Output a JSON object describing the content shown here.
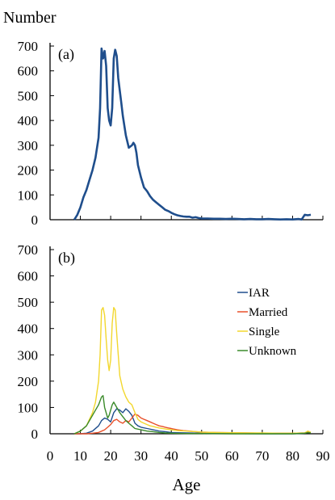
{
  "figure": {
    "ylabel": "Number",
    "xlabel": "Age"
  },
  "chart_data": [
    {
      "type": "line",
      "panel_label": "(a)",
      "ylabel": "Number",
      "xlim": [
        8,
        86
      ],
      "ylim": [
        0,
        700
      ],
      "yticks": [
        0,
        100,
        200,
        300,
        400,
        500,
        600,
        700
      ],
      "grid": false,
      "series": [
        {
          "color": "#1f4e8c",
          "points": [
            [
              8,
              0
            ],
            [
              9,
              20
            ],
            [
              10,
              50
            ],
            [
              11,
              90
            ],
            [
              12,
              120
            ],
            [
              13,
              160
            ],
            [
              14,
              200
            ],
            [
              15,
              250
            ],
            [
              16,
              330
            ],
            [
              16.5,
              450
            ],
            [
              17,
              690
            ],
            [
              17.5,
              650
            ],
            [
              18,
              680
            ],
            [
              18.5,
              620
            ],
            [
              19,
              450
            ],
            [
              19.5,
              400
            ],
            [
              20,
              380
            ],
            [
              20.5,
              450
            ],
            [
              21,
              650
            ],
            [
              21.5,
              685
            ],
            [
              22,
              660
            ],
            [
              22.5,
              570
            ],
            [
              23,
              520
            ],
            [
              23.5,
              470
            ],
            [
              24,
              420
            ],
            [
              24.5,
              380
            ],
            [
              25,
              340
            ],
            [
              26,
              290
            ],
            [
              27,
              300
            ],
            [
              27.5,
              310
            ],
            [
              28,
              300
            ],
            [
              28.5,
              270
            ],
            [
              29,
              220
            ],
            [
              30,
              170
            ],
            [
              31,
              130
            ],
            [
              32,
              115
            ],
            [
              33,
              95
            ],
            [
              34,
              80
            ],
            [
              35,
              70
            ],
            [
              36,
              60
            ],
            [
              37,
              50
            ],
            [
              38,
              40
            ],
            [
              39,
              35
            ],
            [
              40,
              28
            ],
            [
              41,
              22
            ],
            [
              42,
              18
            ],
            [
              43,
              15
            ],
            [
              44,
              13
            ],
            [
              45,
              12
            ],
            [
              46,
              12
            ],
            [
              47,
              8
            ],
            [
              48,
              10
            ],
            [
              49,
              7
            ],
            [
              50,
              5
            ],
            [
              52,
              5
            ],
            [
              54,
              4
            ],
            [
              56,
              4
            ],
            [
              58,
              3
            ],
            [
              60,
              4
            ],
            [
              62,
              3
            ],
            [
              64,
              2
            ],
            [
              66,
              3
            ],
            [
              68,
              2
            ],
            [
              70,
              2
            ],
            [
              72,
              3
            ],
            [
              74,
              2
            ],
            [
              76,
              1
            ],
            [
              78,
              2
            ],
            [
              80,
              1
            ],
            [
              82,
              3
            ],
            [
              83,
              1
            ],
            [
              84,
              20
            ],
            [
              85,
              18
            ],
            [
              86,
              20
            ]
          ]
        }
      ]
    },
    {
      "type": "line",
      "panel_label": "(b)",
      "xlabel": "Age",
      "xlim": [
        0,
        90
      ],
      "ylim": [
        0,
        700
      ],
      "xticks": [
        0,
        10,
        20,
        30,
        40,
        50,
        60,
        70,
        80,
        90
      ],
      "yticks": [
        0,
        100,
        200,
        300,
        400,
        500,
        600,
        700
      ],
      "legend_position": "right",
      "grid": false,
      "series": [
        {
          "name": "IAR",
          "color": "#1f4e8c",
          "points": [
            [
              8,
              0
            ],
            [
              10,
              0
            ],
            [
              12,
              2
            ],
            [
              14,
              10
            ],
            [
              16,
              30
            ],
            [
              17,
              50
            ],
            [
              18,
              60
            ],
            [
              19,
              55
            ],
            [
              20,
              45
            ],
            [
              21,
              80
            ],
            [
              22,
              95
            ],
            [
              23,
              90
            ],
            [
              24,
              80
            ],
            [
              25,
              95
            ],
            [
              26,
              85
            ],
            [
              27,
              70
            ],
            [
              28,
              40
            ],
            [
              29,
              30
            ],
            [
              30,
              25
            ],
            [
              32,
              20
            ],
            [
              34,
              15
            ],
            [
              36,
              10
            ],
            [
              38,
              8
            ],
            [
              40,
              5
            ],
            [
              42,
              4
            ],
            [
              45,
              3
            ],
            [
              50,
              2
            ],
            [
              55,
              1
            ],
            [
              60,
              1
            ],
            [
              70,
              0
            ],
            [
              80,
              0
            ],
            [
              84,
              2
            ],
            [
              85,
              6
            ],
            [
              86,
              5
            ]
          ]
        },
        {
          "name": "Married",
          "color": "#e8502a",
          "points": [
            [
              8,
              0
            ],
            [
              12,
              0
            ],
            [
              14,
              2
            ],
            [
              16,
              5
            ],
            [
              18,
              15
            ],
            [
              19,
              25
            ],
            [
              20,
              35
            ],
            [
              21,
              50
            ],
            [
              22,
              55
            ],
            [
              23,
              45
            ],
            [
              24,
              40
            ],
            [
              25,
              50
            ],
            [
              26,
              45
            ],
            [
              27,
              60
            ],
            [
              28,
              75
            ],
            [
              29,
              70
            ],
            [
              30,
              60
            ],
            [
              31,
              55
            ],
            [
              32,
              50
            ],
            [
              33,
              45
            ],
            [
              34,
              40
            ],
            [
              35,
              35
            ],
            [
              36,
              30
            ],
            [
              37,
              28
            ],
            [
              38,
              25
            ],
            [
              39,
              22
            ],
            [
              40,
              20
            ],
            [
              42,
              15
            ],
            [
              44,
              12
            ],
            [
              46,
              10
            ],
            [
              48,
              8
            ],
            [
              50,
              6
            ],
            [
              55,
              5
            ],
            [
              60,
              4
            ],
            [
              65,
              3
            ],
            [
              70,
              2
            ],
            [
              75,
              2
            ],
            [
              80,
              2
            ],
            [
              84,
              3
            ],
            [
              85,
              5
            ],
            [
              86,
              4
            ]
          ]
        },
        {
          "name": "Single",
          "color": "#f2d72e",
          "points": [
            [
              8,
              0
            ],
            [
              10,
              10
            ],
            [
              12,
              30
            ],
            [
              14,
              80
            ],
            [
              15,
              120
            ],
            [
              16,
              200
            ],
            [
              16.5,
              300
            ],
            [
              17,
              470
            ],
            [
              17.5,
              480
            ],
            [
              18,
              450
            ],
            [
              18.5,
              360
            ],
            [
              19,
              280
            ],
            [
              19.5,
              240
            ],
            [
              20,
              280
            ],
            [
              20.5,
              420
            ],
            [
              21,
              480
            ],
            [
              21.5,
              470
            ],
            [
              22,
              380
            ],
            [
              22.5,
              300
            ],
            [
              23,
              220
            ],
            [
              24,
              170
            ],
            [
              25,
              140
            ],
            [
              26,
              120
            ],
            [
              27,
              110
            ],
            [
              28,
              80
            ],
            [
              29,
              55
            ],
            [
              30,
              45
            ],
            [
              31,
              40
            ],
            [
              32,
              35
            ],
            [
              33,
              30
            ],
            [
              34,
              28
            ],
            [
              35,
              25
            ],
            [
              36,
              22
            ],
            [
              38,
              18
            ],
            [
              40,
              15
            ],
            [
              42,
              12
            ],
            [
              45,
              10
            ],
            [
              48,
              8
            ],
            [
              50,
              6
            ],
            [
              55,
              5
            ],
            [
              60,
              4
            ],
            [
              65,
              3
            ],
            [
              70,
              3
            ],
            [
              75,
              2
            ],
            [
              80,
              2
            ],
            [
              84,
              3
            ],
            [
              85,
              10
            ],
            [
              86,
              6
            ]
          ]
        },
        {
          "name": "Unknown",
          "color": "#3a8a2a",
          "points": [
            [
              8,
              0
            ],
            [
              10,
              10
            ],
            [
              12,
              30
            ],
            [
              14,
              70
            ],
            [
              15,
              90
            ],
            [
              16,
              110
            ],
            [
              17,
              140
            ],
            [
              17.5,
              145
            ],
            [
              18,
              100
            ],
            [
              18.5,
              80
            ],
            [
              19,
              60
            ],
            [
              19.5,
              70
            ],
            [
              20,
              90
            ],
            [
              20.5,
              110
            ],
            [
              21,
              120
            ],
            [
              22,
              100
            ],
            [
              23,
              80
            ],
            [
              24,
              65
            ],
            [
              25,
              50
            ],
            [
              26,
              40
            ],
            [
              27,
              30
            ],
            [
              28,
              20
            ],
            [
              30,
              15
            ],
            [
              32,
              10
            ],
            [
              34,
              8
            ],
            [
              36,
              5
            ],
            [
              38,
              3
            ],
            [
              40,
              2
            ],
            [
              45,
              1
            ],
            [
              50,
              1
            ],
            [
              60,
              0
            ],
            [
              70,
              0
            ],
            [
              80,
              0
            ],
            [
              84,
              2
            ],
            [
              85,
              4
            ],
            [
              86,
              3
            ]
          ]
        }
      ]
    }
  ]
}
